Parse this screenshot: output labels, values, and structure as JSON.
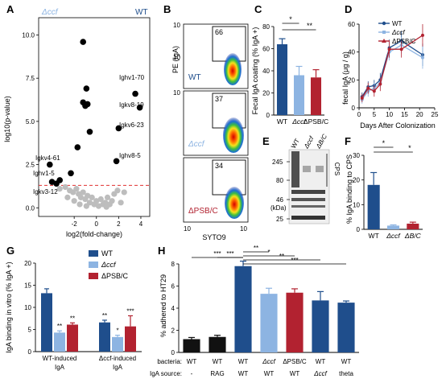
{
  "panels": {
    "A": {
      "letter": "A",
      "corner_left": "Δccf",
      "corner_right": "WT",
      "xlabel": "log2(fold-change)",
      "ylabel": "log10(p-value)",
      "xticks": [
        "-2",
        "0",
        "2",
        "4"
      ],
      "yticks": [
        "0.0",
        "2.5",
        "5.0",
        "7.5",
        "10.0"
      ],
      "labels": [
        "Ighv1-70",
        "Igkv8-19",
        "Igkv6-23",
        "Ighv8-5",
        "Igkv4-61",
        "Ighv1-5",
        "Igkv3-12"
      ]
    },
    "B": {
      "letter": "B",
      "ylabel": "PE (IgA)",
      "xlabel": "SYTO9",
      "plots": [
        {
          "gate": "66",
          "name": "WT"
        },
        {
          "gate": "37",
          "name": "Δccf"
        },
        {
          "gate": "34",
          "name": "ΔPSB/C"
        }
      ],
      "ticks": [
        "10",
        "10",
        "10",
        "10",
        "10"
      ]
    },
    "C": {
      "letter": "C",
      "ylabel": "Fecal IgA coating (% IgA +)",
      "yticks": [
        "0",
        "20",
        "40",
        "60",
        "80"
      ],
      "categories": [
        "WT",
        "Δccf",
        "ΔPSB/C"
      ],
      "sig": [
        "*",
        "**"
      ]
    },
    "D": {
      "letter": "D",
      "ylabel": "fecal IgA (μg / g)",
      "xlabel": "Days After Colonization",
      "xticks": [
        "0",
        "5",
        "10",
        "15",
        "20",
        "25"
      ],
      "yticks": [
        "0",
        "20",
        "40",
        "60"
      ],
      "legend": [
        "WT",
        "Δccf",
        "ΔPSB/C"
      ]
    },
    "E": {
      "letter": "E",
      "lanes": [
        "WT",
        "Δccf",
        "ΔB/C"
      ],
      "markers": [
        "245",
        "80",
        "46",
        "25"
      ],
      "unit": "(kDa)",
      "cps": "CPS"
    },
    "F": {
      "letter": "F",
      "ylabel": "% IgA binding to CPS",
      "yticks": [
        "0",
        "10",
        "20",
        "30"
      ],
      "categories": [
        "WT",
        "Δccf",
        "ΔB/C"
      ],
      "sig": [
        "*",
        "*"
      ]
    },
    "G": {
      "letter": "G",
      "ylabel": "IgA binding in vitro (% IgA +)",
      "yticks": [
        "0",
        "5",
        "10",
        "15",
        "20"
      ],
      "legend": [
        "WT",
        "Δccf",
        "ΔPSB/C"
      ],
      "groups": [
        "WT-induced IgA",
        "Δccf-induced IgA"
      ],
      "group_line1": [
        "WT-induced",
        "Δccf-induced"
      ],
      "group_line2": [
        "IgA",
        "IgA"
      ],
      "marks": [
        "**",
        "**",
        "**",
        "*",
        "***",
        "**"
      ]
    },
    "H": {
      "letter": "H",
      "ylabel": "% adhered to HT29",
      "yticks": [
        "0",
        "2",
        "4",
        "6",
        "8"
      ],
      "row1_label": "bacteria:",
      "row2_label": "IgA source:",
      "bacteria": [
        "WT",
        "WT",
        "WT",
        "Δccf",
        "ΔPSB/C",
        "WT",
        "WT"
      ],
      "iga_source": [
        "-",
        "RAG",
        "WT",
        "WT",
        "WT",
        "Δccf",
        "theta"
      ],
      "sig": [
        "***",
        "***",
        "**",
        "*",
        "**",
        "***"
      ]
    }
  },
  "colors": {
    "wt": "#1f4e8c",
    "ccf": "#8db4e2",
    "psbc": "#b22230",
    "black": "#111111",
    "sig_grey": "#bbbbbb",
    "threshold": "#e03030"
  },
  "chart_data": [
    {
      "panel": "A",
      "type": "scatter",
      "xlabel": "log2(fold-change)",
      "ylabel": "log10(p-value)",
      "xlim": [
        -5.2,
        4.8
      ],
      "ylim": [
        -0.5,
        11
      ],
      "threshold": 1.3,
      "significant": [
        {
          "x": -1.2,
          "y": 9.6
        },
        {
          "x": -0.9,
          "y": 6.9
        },
        {
          "x": -1.2,
          "y": 6.1
        },
        {
          "x": -0.8,
          "y": 6.0
        },
        {
          "x": -1.0,
          "y": 5.9
        },
        {
          "x": -0.6,
          "y": 4.4
        },
        {
          "x": -1.7,
          "y": 3.5
        },
        {
          "x": -2.3,
          "y": 2.0
        },
        {
          "x": -4.2,
          "y": 2.5
        },
        {
          "x": -3.3,
          "y": 1.6
        },
        {
          "x": -4.0,
          "y": 1.5
        },
        {
          "x": -3.6,
          "y": 1.4
        },
        {
          "x": 3.5,
          "y": 6.6
        },
        {
          "x": 3.9,
          "y": 5.8
        },
        {
          "x": 2.0,
          "y": 4.6
        },
        {
          "x": 1.8,
          "y": 2.7
        }
      ],
      "nonsignificant": [
        {
          "x": -3.3,
          "y": 1.1
        },
        {
          "x": -2.8,
          "y": 1.2
        },
        {
          "x": -2.4,
          "y": 1.0
        },
        {
          "x": -2.1,
          "y": 0.9
        },
        {
          "x": -1.8,
          "y": 1.1
        },
        {
          "x": -1.6,
          "y": 0.8
        },
        {
          "x": -1.4,
          "y": 0.6
        },
        {
          "x": -1.2,
          "y": 0.9
        },
        {
          "x": -1.0,
          "y": 0.5
        },
        {
          "x": -0.8,
          "y": 0.7
        },
        {
          "x": -0.6,
          "y": 0.3
        },
        {
          "x": -0.4,
          "y": 0.6
        },
        {
          "x": -0.2,
          "y": 0.2
        },
        {
          "x": 0.0,
          "y": 0.4
        },
        {
          "x": 0.2,
          "y": 0.1
        },
        {
          "x": 0.4,
          "y": 0.5
        },
        {
          "x": 0.6,
          "y": 0.2
        },
        {
          "x": 0.8,
          "y": 0.3
        },
        {
          "x": 1.0,
          "y": 0.6
        },
        {
          "x": 1.2,
          "y": 0.2
        },
        {
          "x": 1.4,
          "y": 0.4
        },
        {
          "x": 1.6,
          "y": 0.8
        },
        {
          "x": 1.9,
          "y": 1.0
        },
        {
          "x": 2.2,
          "y": 0.3
        },
        {
          "x": -1.5,
          "y": 0.2
        },
        {
          "x": -2.0,
          "y": 0.4
        },
        {
          "x": -0.9,
          "y": 0.1
        },
        {
          "x": 0.9,
          "y": 0.05
        },
        {
          "x": -2.6,
          "y": 0.6
        },
        {
          "x": 2.5,
          "y": 0.9
        }
      ]
    },
    {
      "panel": "C",
      "type": "bar",
      "categories": [
        "WT",
        "Δccf",
        "ΔPSB/C"
      ],
      "values": [
        64,
        36,
        34
      ],
      "errors": [
        5,
        8,
        7
      ],
      "ylim": [
        0,
        80
      ],
      "ylabel": "Fecal IgA coating (% IgA +)"
    },
    {
      "panel": "D",
      "type": "line",
      "x": [
        1,
        3,
        5,
        7,
        10,
        14,
        21
      ],
      "series": [
        {
          "name": "WT",
          "values": [
            8,
            15,
            16,
            20,
            43,
            48,
            38
          ],
          "errors": [
            3,
            4,
            4,
            5,
            6,
            7,
            8
          ]
        },
        {
          "name": "Δccf",
          "values": [
            6,
            12,
            14,
            18,
            40,
            45,
            36
          ],
          "errors": [
            3,
            4,
            4,
            4,
            6,
            6,
            8
          ]
        },
        {
          "name": "ΔPSB/C",
          "values": [
            7,
            14,
            12,
            17,
            42,
            42,
            52
          ],
          "errors": [
            3,
            4,
            4,
            5,
            6,
            6,
            8
          ]
        }
      ],
      "xlim": [
        0,
        25
      ],
      "ylim": [
        0,
        60
      ],
      "xlabel": "Days After Colonization",
      "ylabel": "fecal IgA (μg / g)"
    },
    {
      "panel": "F",
      "type": "bar",
      "categories": [
        "WT",
        "Δccf",
        "ΔB/C"
      ],
      "values": [
        18,
        1.5,
        2.3
      ],
      "errors": [
        5,
        0.3,
        0.6
      ],
      "ylim": [
        0,
        30
      ],
      "ylabel": "% IgA binding to CPS"
    },
    {
      "panel": "G",
      "type": "bar",
      "categories": [
        "WT-induced IgA",
        "Δccf-induced IgA"
      ],
      "series": [
        {
          "name": "WT",
          "values": [
            13.2,
            6.6
          ],
          "errors": [
            1.0,
            0.5
          ]
        },
        {
          "name": "Δccf",
          "values": [
            4.3,
            3.3
          ],
          "errors": [
            0.4,
            0.4
          ]
        },
        {
          "name": "ΔPSB/C",
          "values": [
            6.1,
            5.7
          ],
          "errors": [
            0.4,
            2.4
          ]
        }
      ],
      "ylim": [
        0,
        20
      ],
      "ylabel": "IgA binding in vitro (% IgA +)"
    },
    {
      "panel": "H",
      "type": "bar",
      "categories": [
        "WT/-",
        "WT/RAG",
        "WT/WT",
        "Δccf/WT",
        "ΔPSB/C/WT",
        "WT/Δccf",
        "WT/theta"
      ],
      "values": [
        1.2,
        1.4,
        7.8,
        5.3,
        5.4,
        4.7,
        4.5
      ],
      "errors": [
        0.15,
        0.15,
        0.45,
        0.5,
        0.35,
        0.8,
        0.15
      ],
      "ylim": [
        0,
        8
      ],
      "ylabel": "% adhered to HT29"
    }
  ]
}
